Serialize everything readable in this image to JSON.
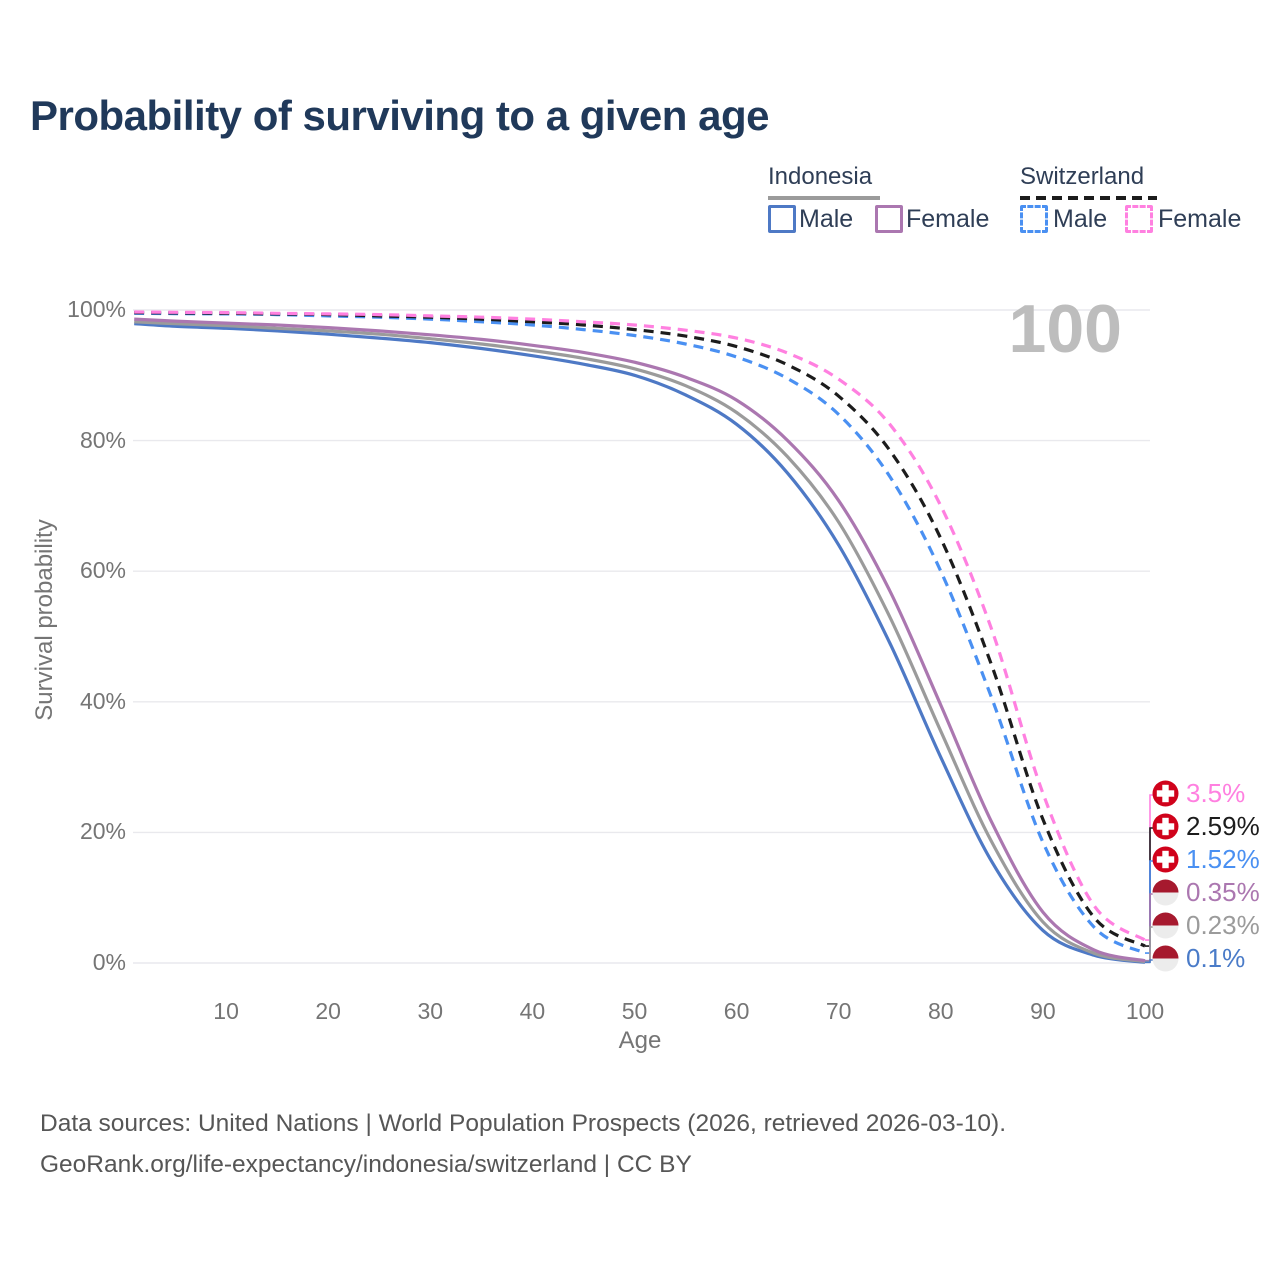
{
  "title": "Probability of surviving to a given age",
  "watermark_age": "100",
  "legend": {
    "groups": [
      {
        "label": "Indonesia",
        "series_id": "id_overall",
        "dash": "solid",
        "items": [
          {
            "label": "Male",
            "series_id": "id_male"
          },
          {
            "label": "Female",
            "series_id": "id_female"
          }
        ]
      },
      {
        "label": "Switzerland",
        "series_id": "ch_overall",
        "dash": "dashed",
        "items": [
          {
            "label": "Male",
            "series_id": "ch_male"
          },
          {
            "label": "Female",
            "series_id": "ch_female"
          }
        ]
      }
    ]
  },
  "chart_data": {
    "type": "line",
    "title": "Probability of surviving to a given age",
    "xlabel": "Age",
    "ylabel": "Survival probability",
    "xlim": [
      0,
      100
    ],
    "ylim": [
      0,
      100
    ],
    "grid": "horizontal",
    "legend_position": "top-right",
    "x_ages": [
      1,
      5,
      10,
      15,
      20,
      25,
      30,
      35,
      40,
      45,
      50,
      55,
      60,
      65,
      70,
      75,
      80,
      85,
      90,
      95,
      100
    ],
    "xticks": [
      "10",
      "20",
      "30",
      "40",
      "50",
      "60",
      "70",
      "80",
      "90",
      "100"
    ],
    "ytick_labels": [
      "100%",
      "80%",
      "60%",
      "40%",
      "20%",
      "0%"
    ],
    "ytick_values": [
      100,
      80,
      60,
      40,
      20,
      0
    ],
    "series": [
      {
        "id": "id_male",
        "name": "Indonesia Male",
        "color": "#4e79c5",
        "dash": "solid",
        "values": [
          97.9,
          97.5,
          97.2,
          96.8,
          96.3,
          95.7,
          95.0,
          94.1,
          93.0,
          91.7,
          90.0,
          87.0,
          82.5,
          75.0,
          64.0,
          49.0,
          31.5,
          15.5,
          5.0,
          1.2,
          0.1
        ]
      },
      {
        "id": "id_overall",
        "name": "Indonesia (both sexes)",
        "color": "#9b9b9b",
        "dash": "solid",
        "values": [
          98.2,
          97.9,
          97.6,
          97.2,
          96.8,
          96.3,
          95.6,
          94.8,
          93.8,
          92.6,
          91.0,
          88.4,
          84.3,
          77.5,
          67.5,
          53.0,
          35.5,
          18.5,
          6.3,
          1.5,
          0.23
        ]
      },
      {
        "id": "id_female",
        "name": "Indonesia Female",
        "color": "#ab77b0",
        "dash": "solid",
        "values": [
          98.6,
          98.3,
          98.0,
          97.7,
          97.3,
          96.8,
          96.2,
          95.5,
          94.6,
          93.5,
          92.0,
          89.7,
          86.2,
          80.0,
          70.8,
          57.0,
          39.5,
          21.5,
          7.8,
          2.0,
          0.35
        ]
      },
      {
        "id": "ch_male",
        "name": "Switzerland Male",
        "color": "#4a90f2",
        "dash": "dashed",
        "values": [
          99.5,
          99.45,
          99.4,
          99.3,
          99.1,
          98.9,
          98.6,
          98.2,
          97.7,
          97.0,
          96.1,
          94.8,
          92.8,
          89.5,
          84.0,
          74.5,
          60.0,
          40.5,
          18.5,
          5.5,
          1.52
        ]
      },
      {
        "id": "ch_overall",
        "name": "Switzerland (both sexes)",
        "color": "#1c1c1c",
        "dash": "dashed",
        "values": [
          99.6,
          99.55,
          99.5,
          99.4,
          99.3,
          99.1,
          98.9,
          98.6,
          98.2,
          97.7,
          97.0,
          96.0,
          94.4,
          91.6,
          86.8,
          78.5,
          65.0,
          45.5,
          22.0,
          7.0,
          2.59
        ]
      },
      {
        "id": "ch_female",
        "name": "Switzerland Female",
        "color": "#ff80e0",
        "dash": "dashed",
        "values": [
          99.7,
          99.65,
          99.6,
          99.5,
          99.4,
          99.3,
          99.1,
          98.9,
          98.6,
          98.2,
          97.7,
          96.9,
          95.7,
          93.4,
          89.4,
          82.5,
          70.0,
          51.0,
          26.0,
          8.8,
          3.5
        ]
      }
    ]
  },
  "end_labels": [
    {
      "flag": "switzerland",
      "series_id": "ch_female",
      "value": "3.5%",
      "color": "#ff80e0"
    },
    {
      "flag": "switzerland",
      "series_id": "ch_overall",
      "value": "2.59%",
      "color": "#1c1c1c"
    },
    {
      "flag": "switzerland",
      "series_id": "ch_male",
      "value": "1.52%",
      "color": "#4a90f2"
    },
    {
      "flag": "indonesia",
      "series_id": "id_female",
      "value": "0.35%",
      "color": "#ab77b0"
    },
    {
      "flag": "indonesia",
      "series_id": "id_overall",
      "value": "0.23%",
      "color": "#9b9b9b"
    },
    {
      "flag": "indonesia",
      "series_id": "id_male",
      "value": "0.1%",
      "color": "#4a7bc8"
    }
  ],
  "colors": {
    "title_text": "#20395a",
    "legend_text": "#2f3e56",
    "axis_text": "#757575",
    "gridline": "#e9e9ed",
    "watermark": "#bdbdbd",
    "swiss_flag_red": "#d0021b",
    "indonesia_flag_red": "#a6192e"
  },
  "footer": {
    "line1": "Data sources: United Nations | World Population Prospects (2026, retrieved 2026-03-10).",
    "line2": "GeoRank.org/life-expectancy/indonesia/switzerland | CC BY"
  }
}
